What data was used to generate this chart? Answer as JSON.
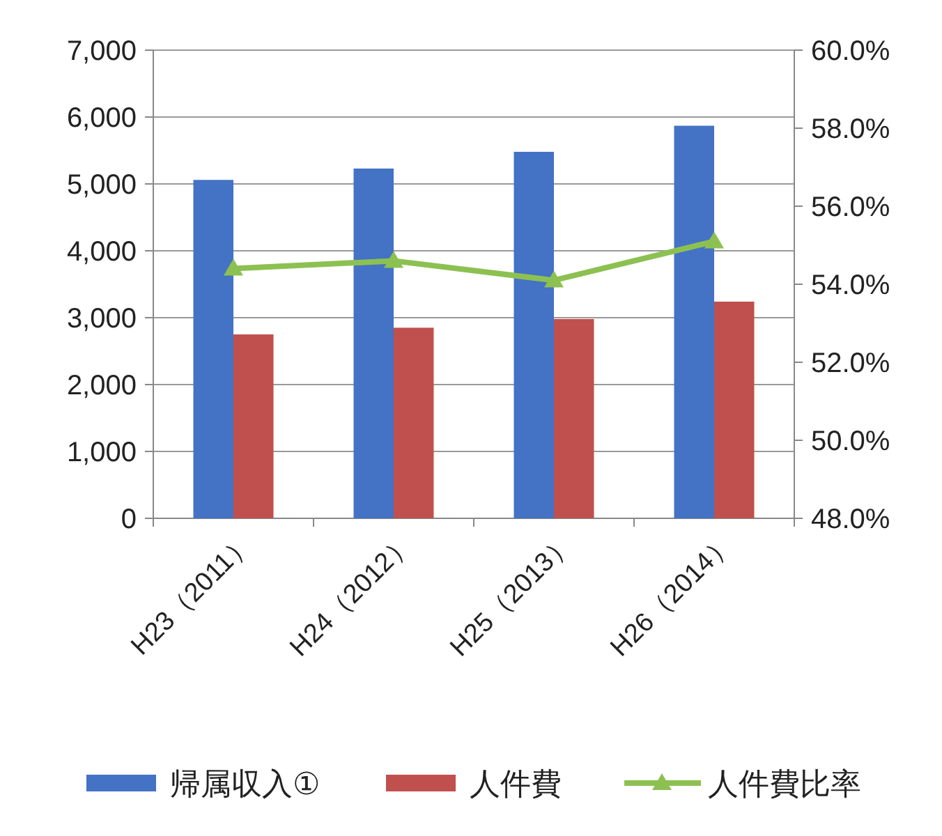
{
  "chart_data": {
    "type": "bar",
    "categories": [
      "H23（2011）",
      "H24（2012）",
      "H25（2013）",
      "H26（2014）"
    ],
    "series": [
      {
        "name": "帰属収入①",
        "color": "#4472c4",
        "values": [
          5060,
          5230,
          5480,
          5870
        ]
      },
      {
        "name": "人件費",
        "color": "#c0504d",
        "values": [
          2750,
          2850,
          2980,
          3240
        ]
      },
      {
        "name": "人件費比率",
        "type": "line",
        "axis": "y2",
        "color": "#8cc152",
        "marker": "triangle",
        "values": [
          54.4,
          54.6,
          54.1,
          55.1
        ]
      }
    ],
    "ylim": [
      0,
      7000
    ],
    "yticks": [
      {
        "value": 0,
        "label": "0"
      },
      {
        "value": 1000,
        "label": "1,000"
      },
      {
        "value": 2000,
        "label": "2,000"
      },
      {
        "value": 3000,
        "label": "3,000"
      },
      {
        "value": 4000,
        "label": "4,000"
      },
      {
        "value": 5000,
        "label": "5,000"
      },
      {
        "value": 6000,
        "label": "6,000"
      },
      {
        "value": 7000,
        "label": "7,000"
      }
    ],
    "y2lim": [
      48,
      60
    ],
    "y2ticks": [
      {
        "value": 48,
        "label": "48.0%"
      },
      {
        "value": 50,
        "label": "50.0%"
      },
      {
        "value": 52,
        "label": "52.0%"
      },
      {
        "value": 54,
        "label": "54.0%"
      },
      {
        "value": 56,
        "label": "56.0%"
      },
      {
        "value": 58,
        "label": "58.0%"
      },
      {
        "value": 60,
        "label": "60.0%"
      }
    ],
    "grid": "y",
    "legend": "bottom"
  }
}
